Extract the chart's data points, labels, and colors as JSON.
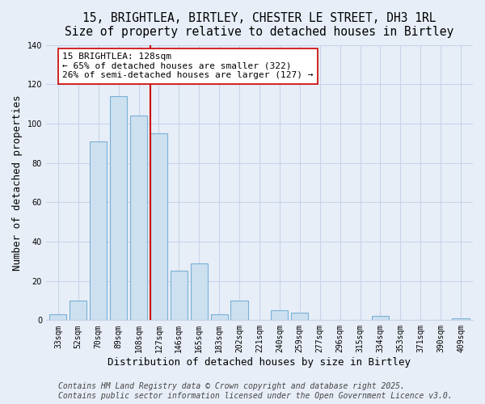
{
  "title": "15, BRIGHTLEA, BIRTLEY, CHESTER LE STREET, DH3 1RL",
  "subtitle": "Size of property relative to detached houses in Birtley",
  "xlabel": "Distribution of detached houses by size in Birtley",
  "ylabel": "Number of detached properties",
  "footer_line1": "Contains HM Land Registry data © Crown copyright and database right 2025.",
  "footer_line2": "Contains public sector information licensed under the Open Government Licence v3.0.",
  "bin_labels": [
    "33sqm",
    "52sqm",
    "70sqm",
    "89sqm",
    "108sqm",
    "127sqm",
    "146sqm",
    "165sqm",
    "183sqm",
    "202sqm",
    "221sqm",
    "240sqm",
    "259sqm",
    "277sqm",
    "296sqm",
    "315sqm",
    "334sqm",
    "353sqm",
    "371sqm",
    "390sqm",
    "409sqm"
  ],
  "bar_heights": [
    3,
    10,
    91,
    114,
    104,
    95,
    25,
    29,
    3,
    10,
    0,
    5,
    4,
    0,
    0,
    0,
    2,
    0,
    0,
    0,
    1
  ],
  "bar_color": "#cce0f0",
  "bar_edge_color": "#7ab0d4",
  "marker_index": 5,
  "marker_label_line1": "15 BRIGHTLEA: 128sqm",
  "marker_label_line2": "← 65% of detached houses are smaller (322)",
  "marker_label_line3": "26% of semi-detached houses are larger (127) →",
  "marker_color": "#cc0000",
  "annotation_box_facecolor": "white",
  "annotation_box_edgecolor": "#cc0000",
  "ylim": [
    0,
    140
  ],
  "yticks": [
    0,
    20,
    40,
    60,
    80,
    100,
    120,
    140
  ],
  "background_color": "#e8eef8",
  "grid_color": "#c8d4e8",
  "title_fontsize": 10.5,
  "xlabel_fontsize": 9,
  "ylabel_fontsize": 9,
  "tick_fontsize": 7,
  "annotation_fontsize": 8,
  "footer_fontsize": 7
}
